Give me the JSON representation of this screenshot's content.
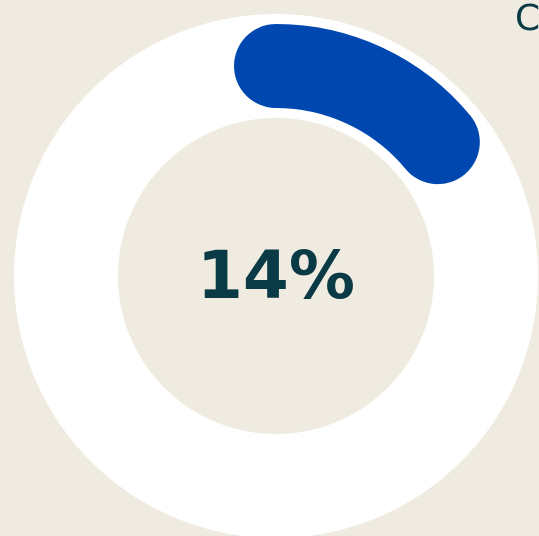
{
  "chart_data": {
    "type": "progress-ring",
    "values": [
      14
    ],
    "value_labels": [
      "14%"
    ],
    "ylim": [
      0,
      100
    ],
    "color": "#0048b0",
    "track_color": "#ffffff",
    "caption": "C"
  }
}
